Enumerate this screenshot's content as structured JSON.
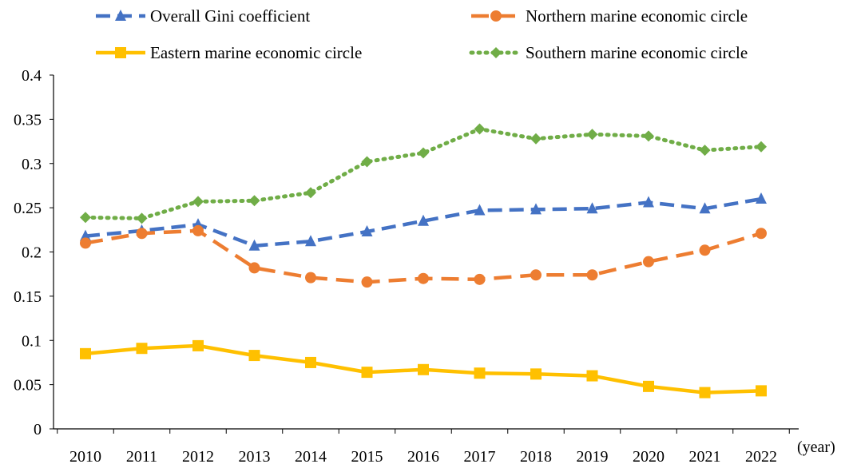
{
  "chart_data": {
    "type": "line",
    "title": "",
    "xlabel": "(year)",
    "ylabel": "",
    "ylim": [
      0,
      0.4
    ],
    "yticks": [
      "0",
      "0.05",
      "0.1",
      "0.15",
      "0.2",
      "0.25",
      "0.3",
      "0.35",
      "0.4"
    ],
    "categories": [
      "2010",
      "2011",
      "2012",
      "2013",
      "2014",
      "2015",
      "2016",
      "2017",
      "2018",
      "2019",
      "2020",
      "2021",
      "2022"
    ],
    "grid": false,
    "legend_position": "top",
    "series": [
      {
        "name": "Overall Gini coefficient",
        "color": "#4472C4",
        "line_style": "dashed",
        "marker": "triangle",
        "values": [
          0.218,
          0.224,
          0.231,
          0.207,
          0.212,
          0.223,
          0.235,
          0.247,
          0.248,
          0.249,
          0.256,
          0.249,
          0.26
        ]
      },
      {
        "name": "Northern marine economic circle",
        "color": "#ED7D31",
        "line_style": "long-dash",
        "marker": "circle",
        "values": [
          0.21,
          0.221,
          0.224,
          0.182,
          0.171,
          0.166,
          0.17,
          0.169,
          0.174,
          0.174,
          0.189,
          0.202,
          0.221
        ]
      },
      {
        "name": "Eastern marine economic circle",
        "color": "#FFC000",
        "line_style": "solid",
        "marker": "square",
        "values": [
          0.085,
          0.091,
          0.094,
          0.083,
          0.075,
          0.064,
          0.067,
          0.063,
          0.062,
          0.06,
          0.048,
          0.041,
          0.043
        ]
      },
      {
        "name": "Southern marine economic circle",
        "color": "#70AD47",
        "line_style": "dotted",
        "marker": "diamond",
        "values": [
          0.239,
          0.238,
          0.257,
          0.258,
          0.267,
          0.302,
          0.312,
          0.339,
          0.328,
          0.333,
          0.331,
          0.315,
          0.319
        ]
      }
    ]
  }
}
